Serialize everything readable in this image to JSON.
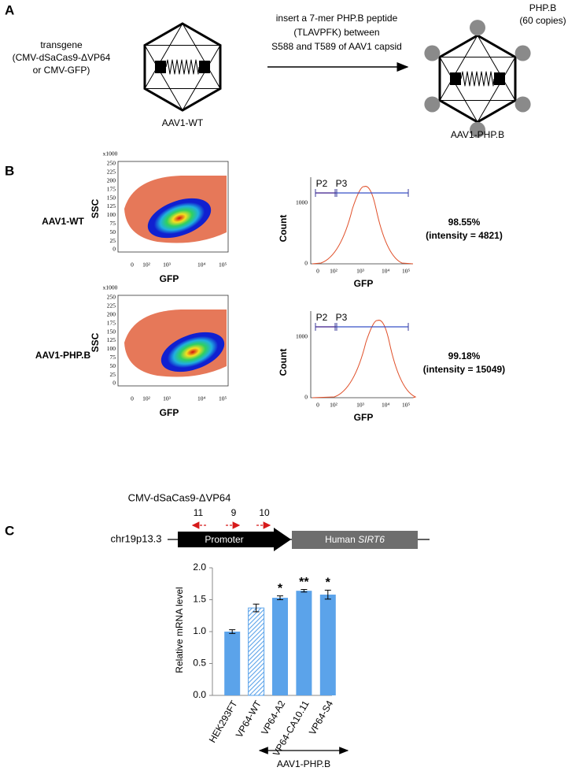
{
  "panel_a": {
    "label": "A",
    "transgene": [
      "transgene",
      "(CMV-dSaCas9-ΔVP64",
      "or CMV-GFP)"
    ],
    "arrow_text": [
      "insert a 7-mer PHP.B peptide",
      "(TLAVPFK) between",
      "S588 and T589 of AAV1 capsid"
    ],
    "left_caption": "AAV1-WT",
    "right_caption": "AAV1-PHP.B",
    "peptide_note": [
      "PHP.B",
      "(60 copies)"
    ]
  },
  "panel_b": {
    "label": "B",
    "rows": [
      {
        "name": "AAV1-WT",
        "percent": "98.55%",
        "intensity": "(intensity = 4821)"
      },
      {
        "name": "AAV1-PHP.B",
        "percent": "99.18%",
        "intensity": "(intensity = 15049)"
      }
    ],
    "scatter": {
      "x_label": "GFP",
      "y_label": "SSC",
      "y_multiplier": "x1000",
      "yticks": [
        0,
        25,
        50,
        75,
        100,
        125,
        150,
        175,
        200,
        225,
        250
      ],
      "xticks": [
        "0",
        "10²",
        "10³",
        "10⁴",
        "10⁵"
      ]
    },
    "histogram": {
      "x_label": "GFP",
      "y_label": "Count",
      "yticks": [
        0,
        1000
      ],
      "xticks": [
        "0",
        "10²",
        "10³",
        "10⁴",
        "10⁵"
      ],
      "gates": [
        "P2",
        "P3"
      ]
    }
  },
  "panel_c": {
    "label": "C",
    "construct": "CMV-dSaCas9-ΔVP64",
    "primers": [
      "11",
      "9",
      "10"
    ],
    "locus": "chr19p13.3",
    "promoter": "Promoter",
    "gene_prefix": "Human ",
    "gene": "SIRT6",
    "bracket_label": "AAV1-PHP.B",
    "chart_data": {
      "type": "bar",
      "y_label": "Relative mRNA level",
      "categories": [
        "HEK293FT",
        "VP64-WT",
        "VP64-A2",
        "VP64-CA10.11",
        "VP64-S4"
      ],
      "values": [
        1.0,
        1.37,
        1.53,
        1.64,
        1.58
      ],
      "errors": [
        0.03,
        0.06,
        0.03,
        0.02,
        0.07
      ],
      "significance": [
        null,
        null,
        "*",
        "**",
        "*"
      ],
      "hatched": [
        false,
        true,
        false,
        false,
        false
      ],
      "color": "#5ba3ea",
      "ylim": [
        0,
        2
      ],
      "yticks": [
        {
          "value": 0,
          "label": "0.0"
        },
        {
          "value": 0.5,
          "label": "0.5"
        },
        {
          "value": 1,
          "label": "1.0"
        },
        {
          "value": 1.5,
          "label": "1.5"
        },
        {
          "value": 2,
          "label": "2.0"
        }
      ]
    }
  }
}
